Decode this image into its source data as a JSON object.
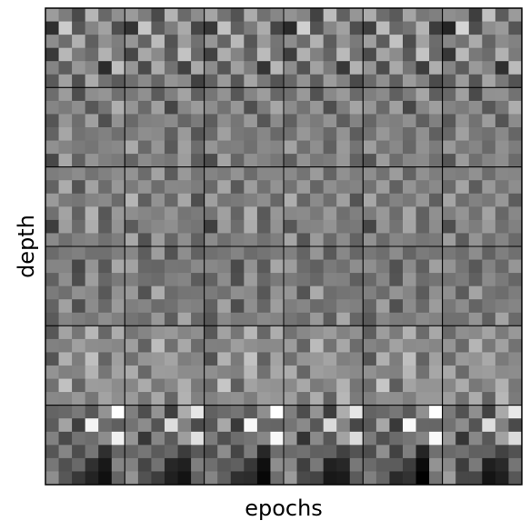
{
  "chart_data": {
    "type": "heatmap",
    "xlabel": "epochs",
    "ylabel": "depth",
    "grid_rows": 6,
    "grid_cols": 6,
    "pixels_per_tile": 6,
    "colormap": "grayscale",
    "value_range": [
      0,
      1
    ],
    "tile_borders": true,
    "row_themes": [
      [
        0.62,
        0.48,
        0.3,
        0.7,
        0.42,
        0.55,
        0.2,
        0.78,
        0.36,
        0.5,
        0.66,
        0.28,
        0.58,
        0.4,
        0.72,
        0.34,
        0.6,
        0.46,
        0.26,
        0.68,
        0.52,
        0.38,
        0.74,
        0.44,
        0.56,
        0.32,
        0.64,
        0.48,
        0.22,
        0.7,
        0.4,
        0.58,
        0.36,
        0.62,
        0.5,
        0.3
      ],
      [
        0.46,
        0.58,
        0.34,
        0.52,
        0.62,
        0.4,
        0.56,
        0.44,
        0.6,
        0.3,
        0.5,
        0.64,
        0.38,
        0.54,
        0.48,
        0.58,
        0.36,
        0.52,
        0.44,
        0.6,
        0.5,
        0.42,
        0.56,
        0.38,
        0.62,
        0.46,
        0.54,
        0.4,
        0.58,
        0.48,
        0.34,
        0.6,
        0.44,
        0.52,
        0.56,
        0.42
      ],
      [
        0.54,
        0.46,
        0.6,
        0.4,
        0.56,
        0.5,
        0.44,
        0.62,
        0.38,
        0.58,
        0.48,
        0.54,
        0.66,
        0.42,
        0.52,
        0.46,
        0.6,
        0.36,
        0.5,
        0.58,
        0.44,
        0.64,
        0.4,
        0.54,
        0.3,
        0.56,
        0.48,
        0.62,
        0.42,
        0.52,
        0.6,
        0.38,
        0.56,
        0.46,
        0.5,
        0.44
      ],
      [
        0.48,
        0.42,
        0.56,
        0.38,
        0.5,
        0.44,
        0.58,
        0.46,
        0.34,
        0.52,
        0.4,
        0.6,
        0.44,
        0.5,
        0.36,
        0.56,
        0.46,
        0.42,
        0.54,
        0.38,
        0.62,
        0.48,
        0.4,
        0.52,
        0.44,
        0.58,
        0.36,
        0.5,
        0.46,
        0.56,
        0.4,
        0.48,
        0.54,
        0.42,
        0.6,
        0.46
      ],
      [
        0.4,
        0.58,
        0.52,
        0.66,
        0.46,
        0.62,
        0.56,
        0.44,
        0.68,
        0.5,
        0.6,
        0.48,
        0.38,
        0.64,
        0.54,
        0.7,
        0.44,
        0.58,
        0.62,
        0.46,
        0.56,
        0.66,
        0.5,
        0.6,
        0.48,
        0.72,
        0.42,
        0.58,
        0.64,
        0.52,
        0.56,
        0.5,
        0.62,
        0.44,
        0.66,
        0.54
      ],
      [
        0.44,
        0.36,
        0.52,
        0.3,
        0.62,
        0.96,
        0.4,
        0.6,
        0.28,
        0.92,
        0.46,
        0.34,
        0.54,
        0.26,
        0.48,
        0.4,
        0.58,
        0.92,
        0.36,
        0.5,
        0.32,
        0.44,
        0.2,
        0.38,
        0.48,
        0.3,
        0.42,
        0.18,
        0.1,
        0.52,
        0.56,
        0.34,
        0.22,
        0.14,
        0.06,
        0.4
      ]
    ]
  }
}
